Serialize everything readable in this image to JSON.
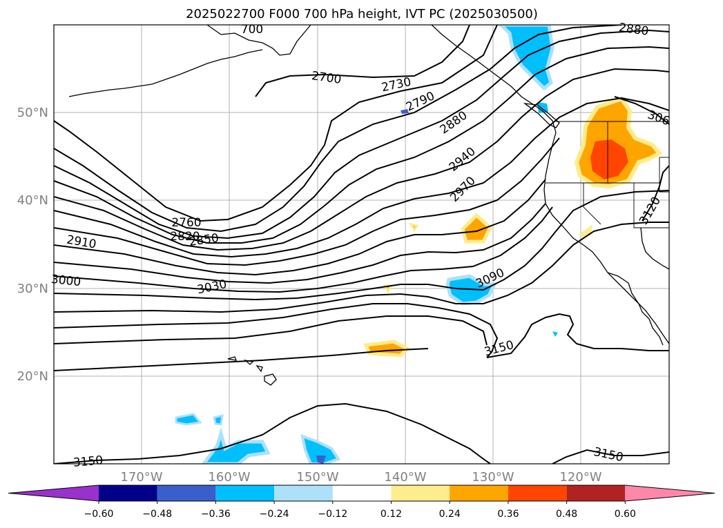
{
  "title": "2025022700 F000 700 hPa height, IVT PC (2025030500)",
  "lon_labels": [
    "170°W",
    "160°W",
    "150°W",
    "140°W",
    "130°W",
    "120°W"
  ],
  "lat_labels": [
    "50°N",
    "40°N",
    "30°N",
    "20°N"
  ],
  "contour_labels": [
    "2700",
    "2730",
    "2790",
    "2880",
    "2940",
    "2970",
    "2760",
    "2820",
    "2850",
    "2910",
    "3000",
    "3030",
    "3090",
    "3150",
    "3150",
    "3150",
    "3120",
    "2880",
    "306",
    "700"
  ],
  "colorbar": {
    "ticks": [
      "−0.60",
      "−0.48",
      "−0.36",
      "−0.24",
      "−0.12",
      "0.12",
      "0.24",
      "0.36",
      "0.48",
      "0.60"
    ],
    "colors": [
      "#9932CC",
      "#00008B",
      "#3A5FCD",
      "#00BFFF",
      "#ADE1FA",
      "#FFFFFF",
      "#FFEC8B",
      "#FFA500",
      "#FF4500",
      "#B22222",
      "#FF88AA"
    ]
  },
  "colors": {
    "land_outline": "#000000",
    "contour": "#000000",
    "grid": "#b0b0b0",
    "neg_light": "#ADE1FA",
    "neg_mid": "#00BFFF",
    "neg_dark": "#3A5FCD",
    "pos_light": "#FFEC8B",
    "pos_mid": "#FFA500",
    "pos_dark": "#FF4500"
  }
}
